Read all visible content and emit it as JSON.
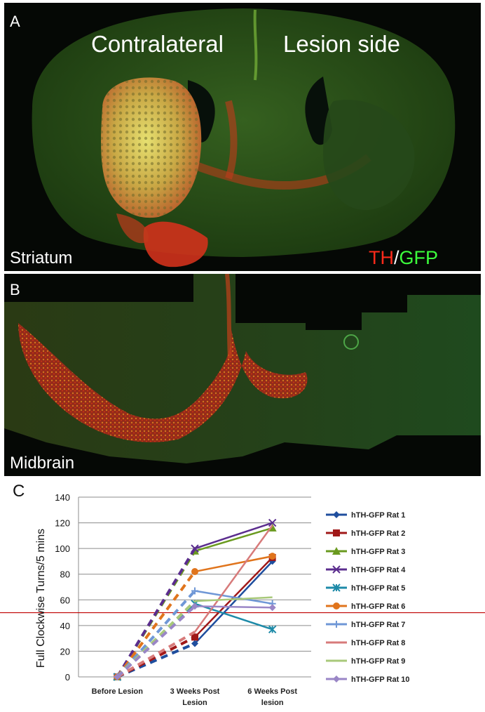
{
  "panel_a": {
    "letter": "A",
    "left_label": "Contralateral",
    "right_label": "Lesion side",
    "region": "Striatum",
    "stain_red": "TH",
    "stain_sep": "/",
    "stain_green": "GFP"
  },
  "panel_b": {
    "letter": "B",
    "region": "Midbrain"
  },
  "panel_c": {
    "letter": "C"
  },
  "colors": {
    "tissue_green": "#2e5a1c",
    "th_red": "#ff2a1a",
    "gfp_green": "#3cff3c",
    "threshold_line": "#c00000"
  },
  "chart_data": {
    "type": "line",
    "categories": [
      "Before Lesion",
      "3 Weeks Post Lesion",
      "6 Weeks Post lesion"
    ],
    "ylabel": "Full Clockwise Turns/5 mins",
    "xlabel": "",
    "ylim": [
      0,
      140
    ],
    "yticks": [
      0,
      20,
      40,
      60,
      80,
      100,
      120,
      140
    ],
    "grid": true,
    "legend_position": "right",
    "reference_line": 50,
    "note": "segment from Before Lesion to 3 Weeks is dashed",
    "series": [
      {
        "name": "hTH-GFP Rat 1",
        "values": [
          0,
          26,
          90
        ],
        "color": "#1f4e9e",
        "marker": "diamond"
      },
      {
        "name": "hTH-GFP Rat 2",
        "values": [
          0,
          31,
          93
        ],
        "color": "#a01818",
        "marker": "square"
      },
      {
        "name": "hTH-GFP Rat 3",
        "values": [
          0,
          98,
          116
        ],
        "color": "#6a9a1f",
        "marker": "triangle"
      },
      {
        "name": "hTH-GFP Rat 4",
        "values": [
          0,
          100,
          120
        ],
        "color": "#5b2d8e",
        "marker": "x"
      },
      {
        "name": "hTH-GFP Rat 5",
        "values": [
          0,
          57,
          37
        ],
        "color": "#1d8aa8",
        "marker": "star"
      },
      {
        "name": "hTH-GFP Rat 6",
        "values": [
          0,
          82,
          94
        ],
        "color": "#e0741c",
        "marker": "circle"
      },
      {
        "name": "hTH-GFP Rat 7",
        "values": [
          0,
          67,
          57
        ],
        "color": "#6f97d6",
        "marker": "plus"
      },
      {
        "name": "hTH-GFP Rat 8",
        "values": [
          0,
          35,
          118
        ],
        "color": "#d77a7a",
        "marker": "none"
      },
      {
        "name": "hTH-GFP Rat 9",
        "values": [
          0,
          59,
          62
        ],
        "color": "#a8c97a",
        "marker": "none"
      },
      {
        "name": "hTH-GFP Rat 10",
        "values": [
          0,
          55,
          54
        ],
        "color": "#9a86c6",
        "marker": "diamond"
      }
    ]
  }
}
